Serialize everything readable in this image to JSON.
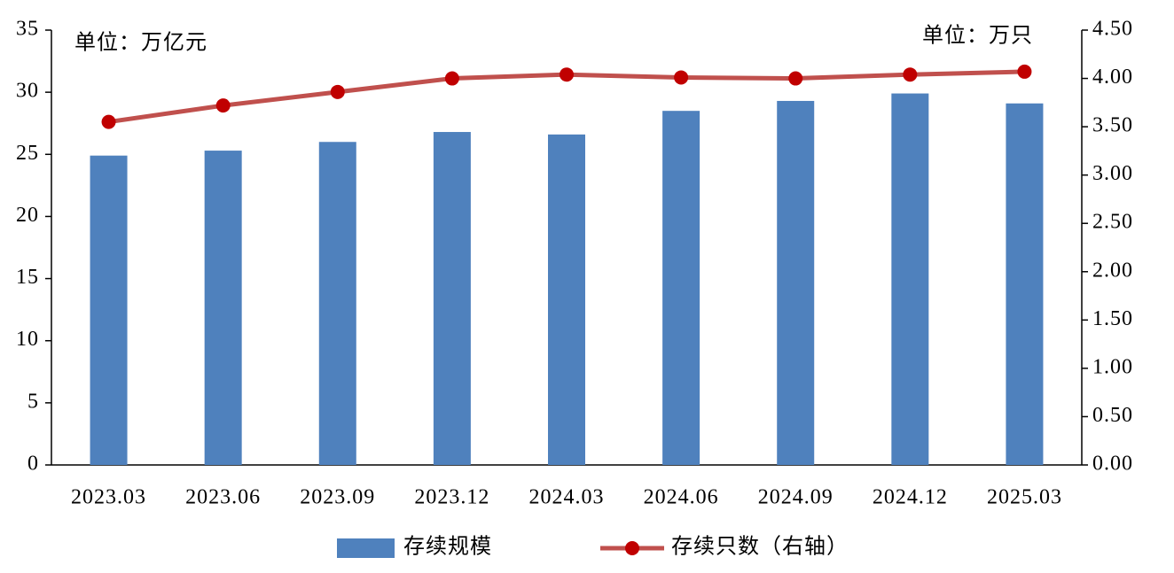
{
  "chart_data": {
    "type": "bar",
    "annotations": [
      "单位：万亿元",
      "单位：万只"
    ],
    "categories": [
      "2023.03",
      "2023.06",
      "2023.09",
      "2023.12",
      "2024.03",
      "2024.06",
      "2024.09",
      "2024.12",
      "2025.03"
    ],
    "series": [
      {
        "name": "存续规模",
        "type": "bar",
        "color": "#4f81bd",
        "values": [
          24.9,
          25.3,
          26.0,
          26.8,
          26.6,
          28.5,
          29.3,
          29.9,
          29.1
        ]
      },
      {
        "name": "存续只数（右轴）",
        "type": "line",
        "axis": "y2",
        "color": "#c0504d",
        "values": [
          3.55,
          3.72,
          3.86,
          4.0,
          4.04,
          4.01,
          4.0,
          4.04,
          4.07
        ]
      }
    ],
    "ylim": [
      0,
      35
    ],
    "yticks": [
      0,
      5,
      10,
      15,
      20,
      25,
      30,
      35
    ],
    "y2lim": [
      0,
      4.5
    ],
    "y2ticks": [
      {
        "value": 0,
        "label": "0.00"
      },
      {
        "value": 0.5,
        "label": "0.50"
      },
      {
        "value": 1,
        "label": "1.00"
      },
      {
        "value": 1.5,
        "label": "1.50"
      },
      {
        "value": 2,
        "label": "2.00"
      },
      {
        "value": 2.5,
        "label": "2.50"
      },
      {
        "value": 3,
        "label": "3.00"
      },
      {
        "value": 3.5,
        "label": "3.50"
      },
      {
        "value": 4,
        "label": "4.00"
      },
      {
        "value": 4.5,
        "label": "4.50"
      }
    ],
    "grid": false,
    "legend": "bottom"
  }
}
